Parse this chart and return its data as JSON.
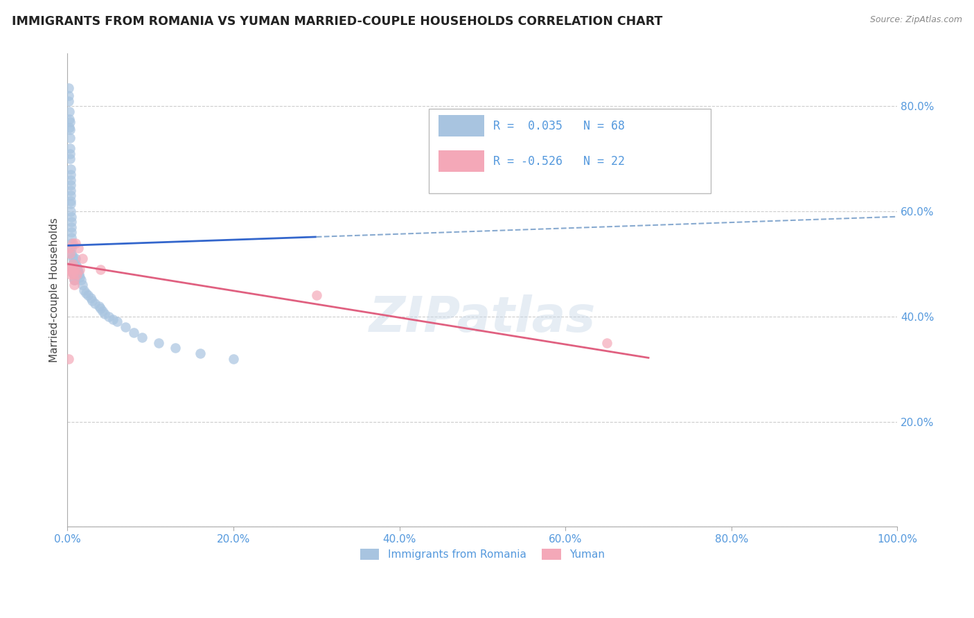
{
  "title": "IMMIGRANTS FROM ROMANIA VS YUMAN MARRIED-COUPLE HOUSEHOLDS CORRELATION CHART",
  "source": "Source: ZipAtlas.com",
  "ylabel": "Married-couple Households",
  "xlim": [
    0.0,
    1.0
  ],
  "ylim": [
    0.0,
    0.9
  ],
  "background_color": "#ffffff",
  "plot_bg_color": "#ffffff",
  "romania_color": "#a8c4e0",
  "yuman_color": "#f4a8b8",
  "romania_line_color": "#3366cc",
  "yuman_line_color": "#e06080",
  "romania_dash_color": "#88aad0",
  "tick_color": "#5599dd",
  "grid_color": "#cccccc",
  "legend_R1": "R =  0.035",
  "legend_N1": "N = 68",
  "legend_R2": "R = -0.526",
  "legend_N2": "N = 22",
  "watermark": "ZIPatlas",
  "title_fontsize": 12.5,
  "axis_label_fontsize": 11,
  "tick_fontsize": 11,
  "romania_x": [
    0.001,
    0.001,
    0.001,
    0.002,
    0.002,
    0.002,
    0.003,
    0.003,
    0.003,
    0.003,
    0.003,
    0.003,
    0.004,
    0.004,
    0.004,
    0.004,
    0.004,
    0.004,
    0.004,
    0.004,
    0.004,
    0.005,
    0.005,
    0.005,
    0.005,
    0.005,
    0.005,
    0.005,
    0.005,
    0.006,
    0.006,
    0.006,
    0.006,
    0.007,
    0.007,
    0.007,
    0.008,
    0.008,
    0.009,
    0.01,
    0.01,
    0.011,
    0.012,
    0.013,
    0.014,
    0.015,
    0.016,
    0.018,
    0.02,
    0.022,
    0.025,
    0.028,
    0.03,
    0.033,
    0.038,
    0.04,
    0.042,
    0.045,
    0.05,
    0.055,
    0.06,
    0.07,
    0.08,
    0.09,
    0.11,
    0.13,
    0.16,
    0.2
  ],
  "romania_y": [
    0.835,
    0.82,
    0.81,
    0.79,
    0.775,
    0.76,
    0.77,
    0.755,
    0.74,
    0.72,
    0.71,
    0.7,
    0.68,
    0.67,
    0.66,
    0.65,
    0.64,
    0.63,
    0.62,
    0.615,
    0.6,
    0.59,
    0.58,
    0.57,
    0.56,
    0.55,
    0.54,
    0.53,
    0.52,
    0.515,
    0.51,
    0.5,
    0.49,
    0.5,
    0.49,
    0.48,
    0.48,
    0.47,
    0.47,
    0.51,
    0.5,
    0.495,
    0.49,
    0.485,
    0.48,
    0.475,
    0.47,
    0.46,
    0.45,
    0.445,
    0.44,
    0.435,
    0.43,
    0.425,
    0.42,
    0.415,
    0.41,
    0.405,
    0.4,
    0.395,
    0.39,
    0.38,
    0.37,
    0.36,
    0.35,
    0.34,
    0.33,
    0.32
  ],
  "yuman_x": [
    0.001,
    0.002,
    0.003,
    0.004,
    0.004,
    0.005,
    0.005,
    0.006,
    0.006,
    0.007,
    0.007,
    0.008,
    0.008,
    0.009,
    0.01,
    0.011,
    0.013,
    0.015,
    0.018,
    0.04,
    0.3,
    0.65
  ],
  "yuman_y": [
    0.32,
    0.53,
    0.52,
    0.49,
    0.48,
    0.495,
    0.485,
    0.5,
    0.54,
    0.49,
    0.48,
    0.47,
    0.46,
    0.49,
    0.54,
    0.48,
    0.53,
    0.49,
    0.51,
    0.49,
    0.44,
    0.35
  ]
}
